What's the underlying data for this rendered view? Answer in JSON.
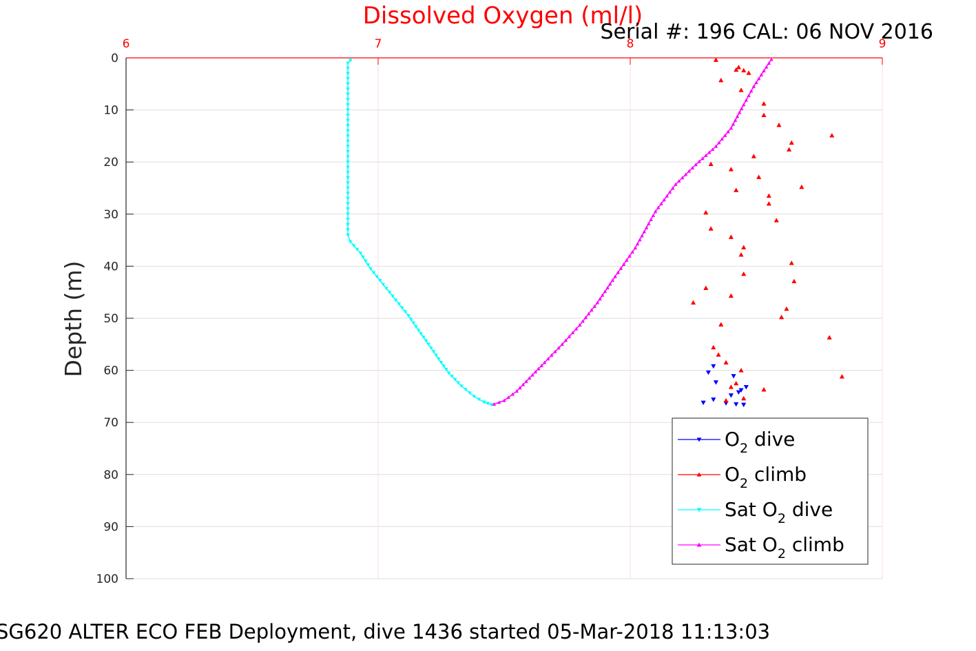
{
  "colors": {
    "o2_dive": "#0000ff",
    "o2_climb": "#ff0000",
    "sat_dive": "#00ffff",
    "sat_climb": "#ff00ff",
    "grid": "#dedede",
    "x_axis": "#ff0000"
  },
  "chart_data": {
    "type": "scatter",
    "title": "Dissolved Oxygen (ml/l)",
    "annotation": "Serial #: 196  CAL: 06 NOV 2016",
    "footer": "SG620 ALTER ECO FEB Deployment, dive 1436 started 05-Mar-2018 11:13:03",
    "xlabel": "",
    "ylabel": "Depth (m)",
    "xlim": [
      6,
      9
    ],
    "ylim": [
      0,
      100
    ],
    "y_reversed": true,
    "x_axis_position": "top",
    "grid": true,
    "x_ticks": [
      6,
      7,
      8,
      9
    ],
    "y_ticks": [
      0,
      10,
      20,
      30,
      40,
      50,
      60,
      70,
      80,
      90,
      100
    ],
    "legend": {
      "position": "bottom-right",
      "entries": [
        {
          "base": "O",
          "sub": "2",
          "rest": " dive",
          "series": 0
        },
        {
          "base": "O",
          "sub": "2",
          "rest": " climb",
          "series": 1
        },
        {
          "base": "Sat O",
          "sub": "2",
          "rest": " dive",
          "series": 2
        },
        {
          "base": "Sat O",
          "sub": "2",
          "rest": " climb",
          "series": 3
        }
      ]
    },
    "series": [
      {
        "key": "o2_dive",
        "color": "#0000ff",
        "marker": "triangle-down",
        "line": false,
        "points": [
          [
            8.29,
            66.2
          ],
          [
            8.33,
            65.6
          ],
          [
            8.34,
            62.3
          ],
          [
            8.38,
            66.3
          ],
          [
            8.4,
            64.8
          ],
          [
            8.42,
            66.5
          ],
          [
            8.43,
            64.2
          ],
          [
            8.44,
            63.8
          ],
          [
            8.45,
            66.6
          ],
          [
            8.46,
            63.2
          ],
          [
            8.41,
            61.1
          ],
          [
            8.31,
            60.4
          ],
          [
            8.33,
            59.2
          ]
        ]
      },
      {
        "key": "o2_climb",
        "color": "#ff0000",
        "marker": "triangle-up",
        "line": false,
        "points": [
          [
            8.25,
            47
          ],
          [
            8.3,
            44.2
          ],
          [
            8.42,
            25.4
          ],
          [
            8.32,
            20.4
          ],
          [
            8.4,
            21.4
          ],
          [
            8.45,
            41.5
          ],
          [
            8.44,
            37.8
          ],
          [
            8.45,
            36.4
          ],
          [
            8.4,
            45.7
          ],
          [
            8.36,
            51.2
          ],
          [
            8.33,
            55.6
          ],
          [
            8.35,
            57
          ],
          [
            8.38,
            58.5
          ],
          [
            8.44,
            60
          ],
          [
            8.42,
            62.5
          ],
          [
            8.4,
            63.2
          ],
          [
            8.38,
            65.8
          ],
          [
            8.45,
            65.4
          ],
          [
            8.53,
            63.7
          ],
          [
            8.62,
            48.2
          ],
          [
            8.6,
            49.8
          ],
          [
            8.65,
            42.9
          ],
          [
            8.64,
            39.4
          ],
          [
            8.58,
            31.2
          ],
          [
            8.55,
            28
          ],
          [
            8.55,
            26.5
          ],
          [
            8.51,
            22.9
          ],
          [
            8.68,
            24.8
          ],
          [
            8.63,
            17.6
          ],
          [
            8.64,
            16.3
          ],
          [
            8.49,
            18.9
          ],
          [
            8.59,
            12.9
          ],
          [
            8.53,
            11
          ],
          [
            8.53,
            8.8
          ],
          [
            8.44,
            6.2
          ],
          [
            8.43,
            1.8
          ],
          [
            8.45,
            2.4
          ],
          [
            8.36,
            4.3
          ],
          [
            8.34,
            0.4
          ],
          [
            8.42,
            2.3
          ],
          [
            8.8,
            14.9
          ],
          [
            8.84,
            61.2
          ],
          [
            8.79,
            53.7
          ],
          [
            8.47,
            2.9
          ],
          [
            8.3,
            29.7
          ],
          [
            8.32,
            32.8
          ],
          [
            8.4,
            34.4
          ]
        ]
      },
      {
        "key": "sat_dive",
        "color": "#00ffff",
        "marker": "triangle-down",
        "line": true,
        "points": [
          [
            6.89,
            0.5
          ],
          [
            6.88,
            1
          ],
          [
            6.88,
            5
          ],
          [
            6.88,
            10
          ],
          [
            6.88,
            15
          ],
          [
            6.88,
            20
          ],
          [
            6.88,
            25
          ],
          [
            6.88,
            30
          ],
          [
            6.88,
            34
          ],
          [
            6.89,
            35.3
          ],
          [
            6.93,
            37.5
          ],
          [
            6.97,
            40.5
          ],
          [
            7.02,
            43.5
          ],
          [
            7.07,
            46.5
          ],
          [
            7.12,
            49.5
          ],
          [
            7.16,
            52.3
          ],
          [
            7.2,
            55
          ],
          [
            7.25,
            58.5
          ],
          [
            7.28,
            60.5
          ],
          [
            7.33,
            63
          ],
          [
            7.38,
            65
          ],
          [
            7.42,
            66.1
          ],
          [
            7.45,
            66.6
          ]
        ]
      },
      {
        "key": "sat_climb",
        "color": "#ff00ff",
        "marker": "triangle-up",
        "line": true,
        "points": [
          [
            7.46,
            66.5
          ],
          [
            7.5,
            65.8
          ],
          [
            7.55,
            64
          ],
          [
            7.6,
            61.5
          ],
          [
            7.66,
            58.5
          ],
          [
            7.73,
            55
          ],
          [
            7.8,
            51.3
          ],
          [
            7.87,
            47
          ],
          [
            7.94,
            42
          ],
          [
            8.02,
            36.5
          ],
          [
            8.1,
            29.5
          ],
          [
            8.18,
            24.3
          ],
          [
            8.26,
            20.5
          ],
          [
            8.34,
            17
          ],
          [
            8.4,
            13.5
          ],
          [
            8.45,
            9
          ],
          [
            8.49,
            5.5
          ],
          [
            8.53,
            2.5
          ],
          [
            8.56,
            0.3
          ]
        ]
      }
    ]
  }
}
